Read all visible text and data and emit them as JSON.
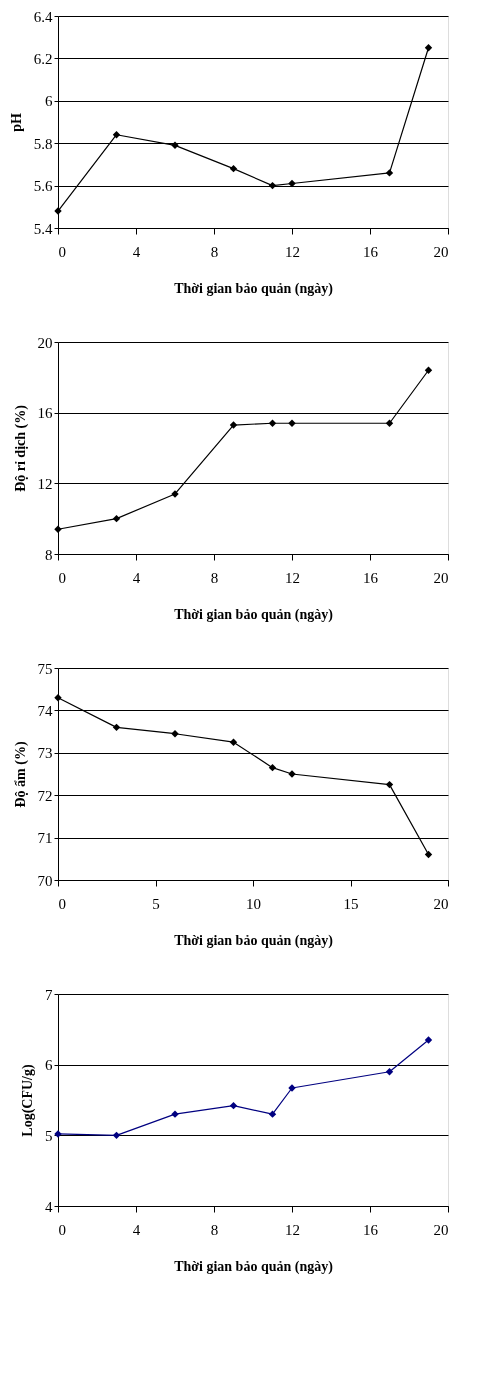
{
  "chart_data": [
    {
      "type": "line",
      "xlabel": "Thời gian bảo quản (ngày)",
      "ylabel": "pH",
      "x": [
        0,
        3,
        6,
        9,
        11,
        12,
        17,
        19
      ],
      "series": [
        {
          "color": "#000000",
          "values": [
            5.48,
            5.84,
            5.79,
            5.68,
            5.6,
            5.61,
            5.66,
            6.25
          ]
        }
      ],
      "xlim": [
        0,
        20
      ],
      "xticks": [
        0,
        4,
        8,
        12,
        16,
        20
      ],
      "ylim": [
        5.4,
        6.4
      ],
      "yticks": [
        5.4,
        5.6,
        5.8,
        6,
        6.2,
        6.4
      ],
      "grid": "y",
      "marker": "diamond",
      "line_style": "solid"
    },
    {
      "type": "line",
      "xlabel": "Thời gian bảo quản (ngày)",
      "ylabel": "Độ rỉ dịch (%)",
      "x": [
        0,
        3,
        6,
        9,
        11,
        12,
        17,
        19
      ],
      "series": [
        {
          "color": "#000000",
          "values": [
            9.4,
            10.0,
            11.4,
            15.3,
            15.4,
            15.4,
            15.4,
            18.4
          ]
        }
      ],
      "xlim": [
        0,
        20
      ],
      "xticks": [
        0,
        4,
        8,
        12,
        16,
        20
      ],
      "ylim": [
        8,
        20
      ],
      "yticks": [
        8,
        12,
        16,
        20
      ],
      "grid": "y",
      "marker": "diamond",
      "line_style": "solid"
    },
    {
      "type": "line",
      "xlabel": "Thời gian bảo quản (ngày)",
      "ylabel": "Độ ẩm (%)",
      "x": [
        0,
        3,
        6,
        9,
        11,
        12,
        17,
        19
      ],
      "series": [
        {
          "color": "#000000",
          "values": [
            74.3,
            73.6,
            73.45,
            73.25,
            72.65,
            72.5,
            72.25,
            70.6
          ]
        }
      ],
      "xlim": [
        0,
        20
      ],
      "xticks": [
        0,
        5,
        10,
        15,
        20
      ],
      "ylim": [
        70,
        75
      ],
      "yticks": [
        70,
        71,
        72,
        73,
        74,
        75
      ],
      "grid": "y",
      "marker": "diamond",
      "line_style": "solid"
    },
    {
      "type": "line",
      "xlabel": "Thời gian bảo quản (ngày)",
      "ylabel": "Log(CFU/g)",
      "x": [
        0,
        3,
        6,
        9,
        11,
        12,
        17,
        19
      ],
      "series": [
        {
          "color": "#000080",
          "values": [
            5.02,
            5.0,
            5.3,
            5.42,
            5.3,
            5.67,
            5.9,
            6.35
          ]
        }
      ],
      "xlim": [
        0,
        20
      ],
      "xticks": [
        0,
        4,
        8,
        12,
        16,
        20
      ],
      "ylim": [
        4,
        7
      ],
      "yticks": [
        4,
        5,
        6,
        7
      ],
      "grid": "y",
      "marker": "diamond",
      "line_style": "solid"
    }
  ]
}
